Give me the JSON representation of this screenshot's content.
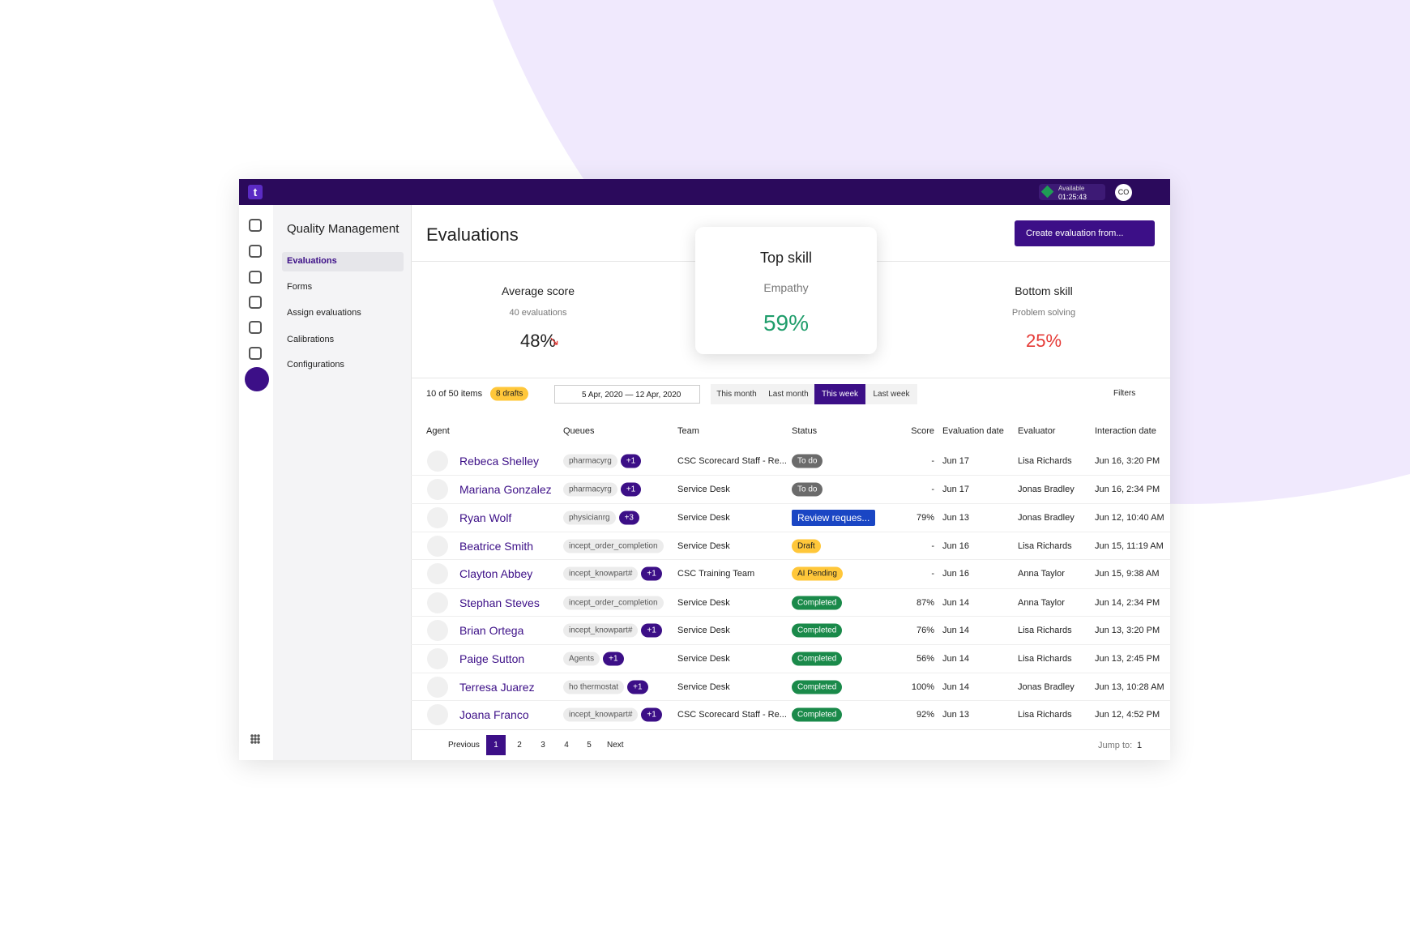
{
  "header": {
    "status": "Available",
    "timer": "01:25:43",
    "avatar": "CO"
  },
  "nav": {
    "title": "Quality Management",
    "items": [
      "Evaluations",
      "Forms",
      "Assign evaluations",
      "Calibrations",
      "Configurations"
    ]
  },
  "page": {
    "title": "Evaluations",
    "create_button": "Create evaluation from..."
  },
  "stats": [
    {
      "title": "Average score",
      "subtitle": "40 evaluations",
      "value": "48%"
    },
    {
      "title": "Top skill",
      "subtitle": "Empathy",
      "value": "59%"
    },
    {
      "title": "Bottom skill",
      "subtitle": "Problem solving",
      "value": "25%"
    }
  ],
  "toolbar": {
    "count": "10 of 50 items",
    "drafts": "8 drafts",
    "date_range": "5 Apr, 2020 — 12 Apr, 2020",
    "periods": [
      "This month",
      "Last month",
      "This week",
      "Last week"
    ],
    "filters": "Filters"
  },
  "table": {
    "columns": [
      "Agent",
      "Queues",
      "Team",
      "Status",
      "Score",
      "Evaluation date",
      "Evaluator",
      "Interaction date"
    ],
    "rows": [
      [
        "Rebeca Shelley",
        "pharmacyrg",
        "+1",
        "CSC Scorecard Staff - Re...",
        "To do",
        "-",
        "Jun 17",
        "Lisa Richards",
        "Jun 16, 3:20 PM"
      ],
      [
        "Mariana Gonzalez",
        "pharmacyrg",
        "+1",
        "Service Desk",
        "To do",
        "-",
        "Jun 17",
        "Jonas Bradley",
        "Jun 16, 2:34 PM"
      ],
      [
        "Ryan Wolf",
        "physicianrg",
        "+3",
        "Service Desk",
        "Review reques...",
        "79%",
        "Jun 13",
        "Jonas Bradley",
        "Jun 12, 10:40 AM"
      ],
      [
        "Beatrice Smith",
        "incept_order_completion",
        null,
        "Service Desk",
        "Draft",
        "-",
        "Jun 16",
        "Lisa Richards",
        "Jun 15, 11:19 AM"
      ],
      [
        "Clayton Abbey",
        "incept_knowpart#",
        "+1",
        "CSC Training Team",
        "AI Pending",
        "-",
        "Jun 16",
        "Anna Taylor",
        "Jun 15, 9:38 AM"
      ],
      [
        "Stephan Steves",
        "incept_order_completion",
        null,
        "Service Desk",
        "Completed",
        "87%",
        "Jun 14",
        "Anna Taylor",
        "Jun 14, 2:34 PM"
      ],
      [
        "Brian Ortega",
        "incept_knowpart#",
        "+1",
        "Service Desk",
        "Completed",
        "76%",
        "Jun 14",
        "Lisa Richards",
        "Jun 13, 3:20 PM"
      ],
      [
        "Paige Sutton",
        "Agents",
        "+1",
        "Service Desk",
        "Completed",
        "56%",
        "Jun 14",
        "Lisa Richards",
        "Jun 13, 2:45 PM"
      ],
      [
        "Terresa Juarez",
        "ho thermostat",
        "+1",
        "Service Desk",
        "Completed",
        "100%",
        "Jun 14",
        "Jonas Bradley",
        "Jun 13, 10:28 AM"
      ],
      [
        "Joana Franco",
        "incept_knowpart#",
        "+1",
        "CSC Scorecard Staff - Re...",
        "Completed",
        "92%",
        "Jun 13",
        "Lisa Richards",
        "Jun 12, 4:52 PM"
      ]
    ]
  },
  "pagination": {
    "previous": "Previous",
    "pages": [
      "1",
      "2",
      "3",
      "4",
      "5"
    ],
    "next": "Next",
    "jump_label": "Jump to:",
    "jump_value": "1"
  }
}
